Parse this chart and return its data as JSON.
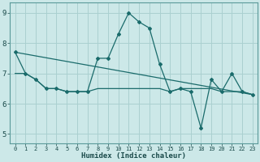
{
  "title": "",
  "xlabel": "Humidex (Indice chaleur)",
  "background_color": "#cce8e8",
  "grid_color": "#aad0d0",
  "line_color": "#1a6b6b",
  "xlim": [
    -0.5,
    23.5
  ],
  "ylim": [
    4.7,
    9.35
  ],
  "yticks": [
    5,
    6,
    7,
    8,
    9
  ],
  "xticks": [
    0,
    1,
    2,
    3,
    4,
    5,
    6,
    7,
    8,
    9,
    10,
    11,
    12,
    13,
    14,
    15,
    16,
    17,
    18,
    19,
    20,
    21,
    22,
    23
  ],
  "series1_x": [
    0,
    1,
    2,
    3,
    4,
    5,
    6,
    7,
    8,
    9,
    10,
    11,
    12,
    13,
    14,
    15,
    16,
    17,
    18,
    19,
    20,
    21,
    22,
    23
  ],
  "series1_y": [
    7.7,
    7.0,
    6.8,
    6.5,
    6.5,
    6.4,
    6.4,
    6.4,
    7.5,
    7.5,
    8.3,
    9.0,
    8.7,
    8.5,
    7.3,
    6.4,
    6.5,
    6.4,
    5.2,
    6.8,
    6.4,
    7.0,
    6.4,
    6.3
  ],
  "series2_x": [
    0,
    1,
    2,
    3,
    4,
    5,
    6,
    7,
    8,
    9,
    10,
    11,
    12,
    13,
    14,
    15,
    16,
    17,
    18,
    19,
    20,
    21,
    22,
    23
  ],
  "series2_y": [
    7.0,
    7.0,
    6.8,
    6.5,
    6.5,
    6.4,
    6.4,
    6.4,
    6.5,
    6.5,
    6.5,
    6.5,
    6.5,
    6.5,
    6.5,
    6.4,
    6.5,
    6.5,
    6.5,
    6.5,
    6.4,
    6.4,
    6.4,
    6.3
  ],
  "series3_x": [
    0,
    23
  ],
  "series3_y": [
    7.7,
    6.3
  ]
}
